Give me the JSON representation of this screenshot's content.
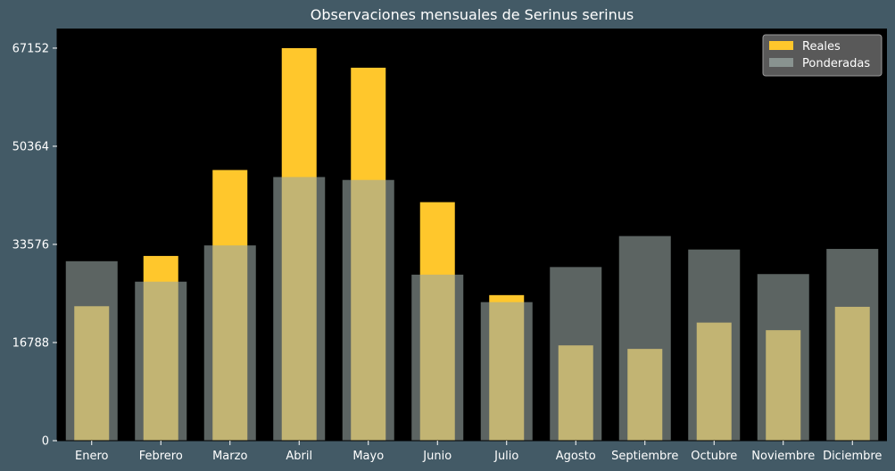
{
  "chart_data": {
    "type": "bar",
    "title": "Observaciones mensuales de Serinus serinus",
    "xlabel": "",
    "ylabel": "",
    "categories": [
      "Enero",
      "Febrero",
      "Marzo",
      "Abril",
      "Mayo",
      "Junio",
      "Julio",
      "Agosto",
      "Septiembre",
      "Octubre",
      "Noviembre",
      "Diciembre"
    ],
    "series": [
      {
        "name": "Reales",
        "color": "#ffc72c",
        "values": [
          23000,
          31600,
          46300,
          67152,
          63800,
          40800,
          24900,
          16300,
          15700,
          20200,
          18900,
          22900
        ]
      },
      {
        "name": "Ponderadas",
        "color": "#9aa7a3",
        "values": [
          30700,
          27200,
          33400,
          45100,
          44600,
          28400,
          23700,
          29700,
          35000,
          32700,
          28500,
          32800
        ]
      }
    ],
    "yticks": [
      0,
      16788,
      33576,
      50364,
      67152
    ],
    "ylim": [
      0,
      70500
    ],
    "legend_position": "top-right",
    "grid": false
  }
}
